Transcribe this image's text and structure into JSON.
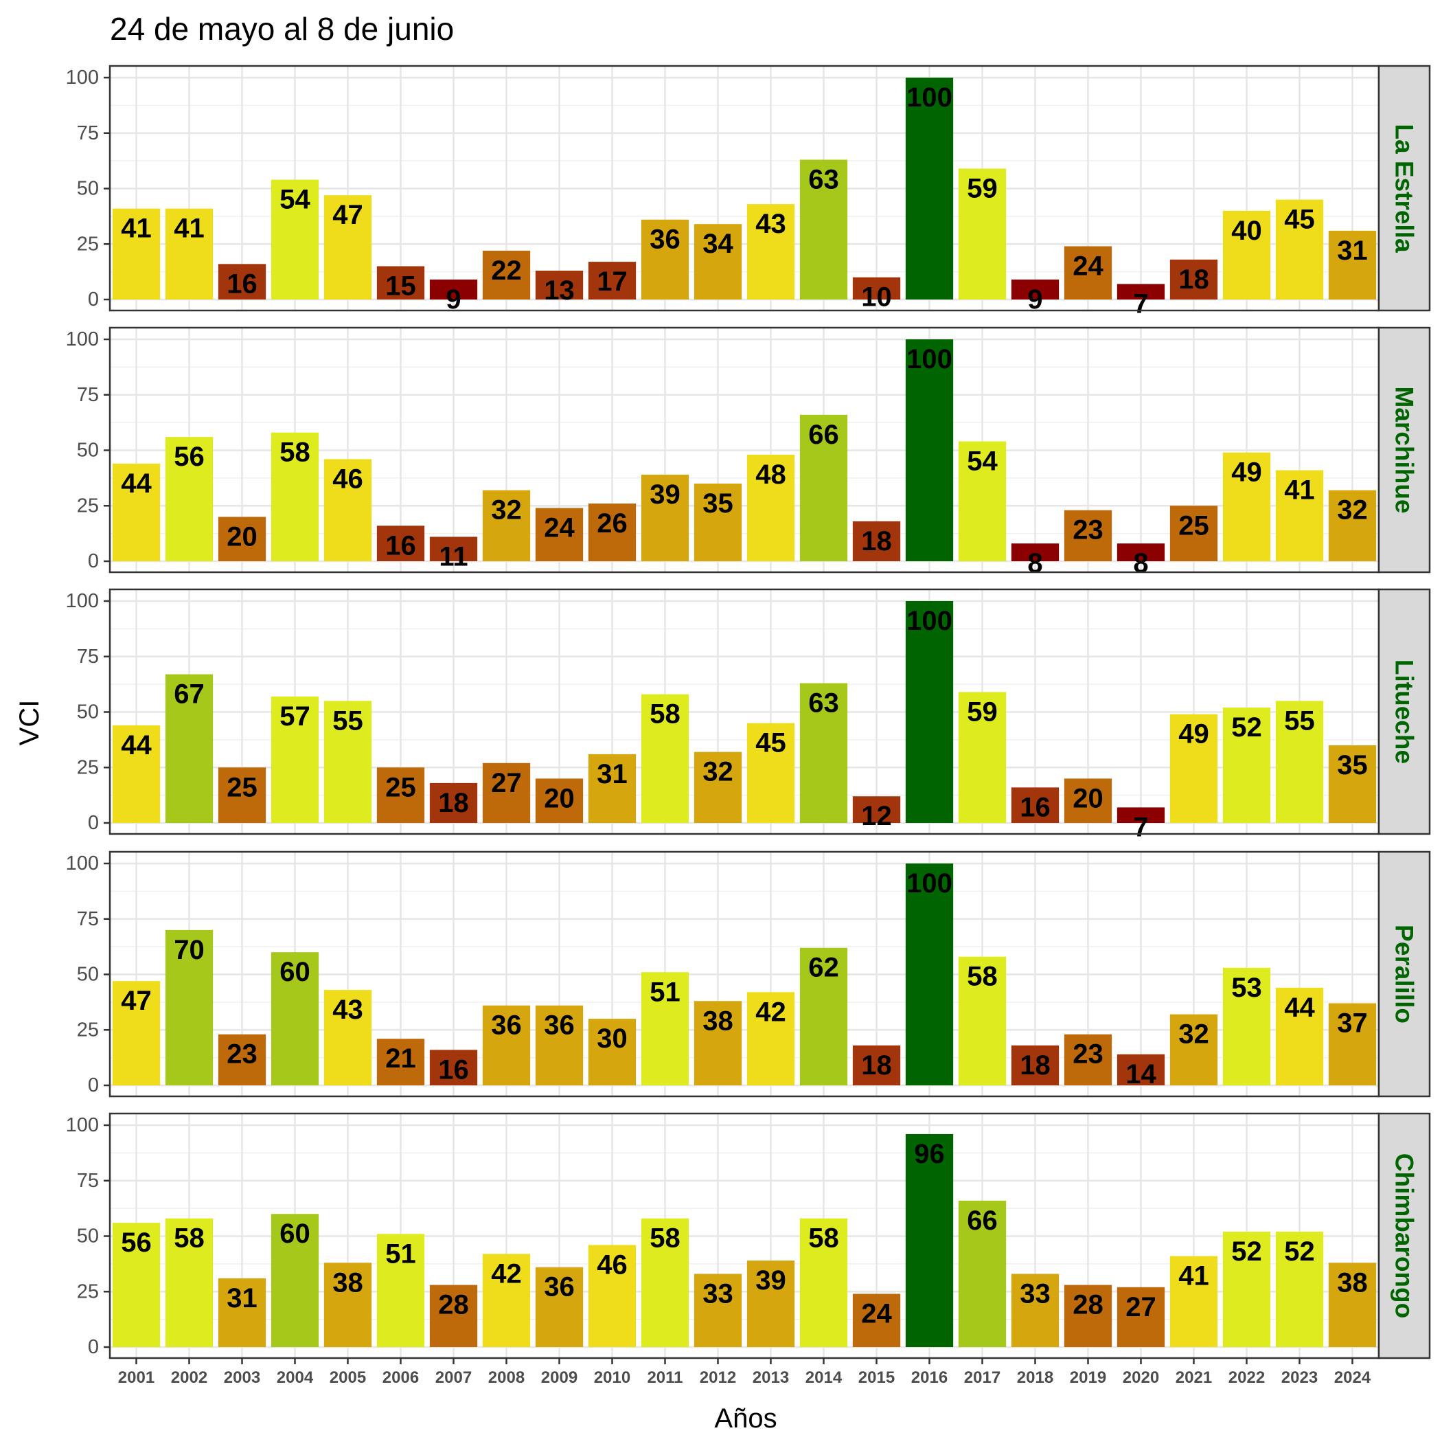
{
  "chart_data": {
    "type": "bar",
    "title": "24 de mayo al 8 de junio",
    "xlabel": "Años",
    "ylabel": "VCI",
    "ylim": [
      0,
      100
    ],
    "yticks": [
      0,
      25,
      50,
      75,
      100
    ],
    "grid": true,
    "facet": "rows",
    "categories": [
      "2001",
      "2002",
      "2003",
      "2004",
      "2005",
      "2006",
      "2007",
      "2008",
      "2009",
      "2010",
      "2011",
      "2012",
      "2013",
      "2014",
      "2015",
      "2016",
      "2017",
      "2018",
      "2019",
      "2020",
      "2021",
      "2022",
      "2023",
      "2024"
    ],
    "series": [
      {
        "name": "La Estrella",
        "values": [
          41,
          41,
          16,
          54,
          47,
          15,
          9,
          22,
          13,
          17,
          36,
          34,
          43,
          63,
          10,
          100,
          59,
          9,
          24,
          7,
          18,
          40,
          45,
          31
        ]
      },
      {
        "name": "Marchihue",
        "values": [
          44,
          56,
          20,
          58,
          46,
          16,
          11,
          32,
          24,
          26,
          39,
          35,
          48,
          66,
          18,
          100,
          54,
          8,
          23,
          8,
          25,
          49,
          41,
          32
        ]
      },
      {
        "name": "Litueche",
        "values": [
          44,
          67,
          25,
          57,
          55,
          25,
          18,
          27,
          20,
          31,
          58,
          32,
          45,
          63,
          12,
          100,
          59,
          16,
          20,
          7,
          49,
          52,
          55,
          35
        ]
      },
      {
        "name": "Peralillo",
        "values": [
          47,
          70,
          23,
          60,
          43,
          21,
          16,
          36,
          36,
          30,
          51,
          38,
          42,
          62,
          18,
          100,
          58,
          18,
          23,
          14,
          32,
          53,
          44,
          37
        ]
      },
      {
        "name": "Chimbarongo",
        "values": [
          56,
          58,
          31,
          60,
          38,
          51,
          28,
          42,
          36,
          46,
          58,
          33,
          39,
          58,
          24,
          96,
          66,
          33,
          28,
          27,
          41,
          52,
          52,
          38
        ]
      }
    ],
    "color_scale": [
      {
        "min": 0,
        "max": 10,
        "color": "#8b0000"
      },
      {
        "min": 10,
        "max": 20,
        "color": "#a2350b"
      },
      {
        "min": 20,
        "max": 30,
        "color": "#bf6a0a"
      },
      {
        "min": 30,
        "max": 40,
        "color": "#d6a60f"
      },
      {
        "min": 40,
        "max": 50,
        "color": "#efdd1b"
      },
      {
        "min": 50,
        "max": 60,
        "color": "#deeb1e"
      },
      {
        "min": 60,
        "max": 90,
        "color": "#a5c81a"
      },
      {
        "min": 90,
        "max": 101,
        "color": "#006400"
      }
    ],
    "strip_text_color": "#006400",
    "strip_fill_color": "#d9d9d9"
  }
}
